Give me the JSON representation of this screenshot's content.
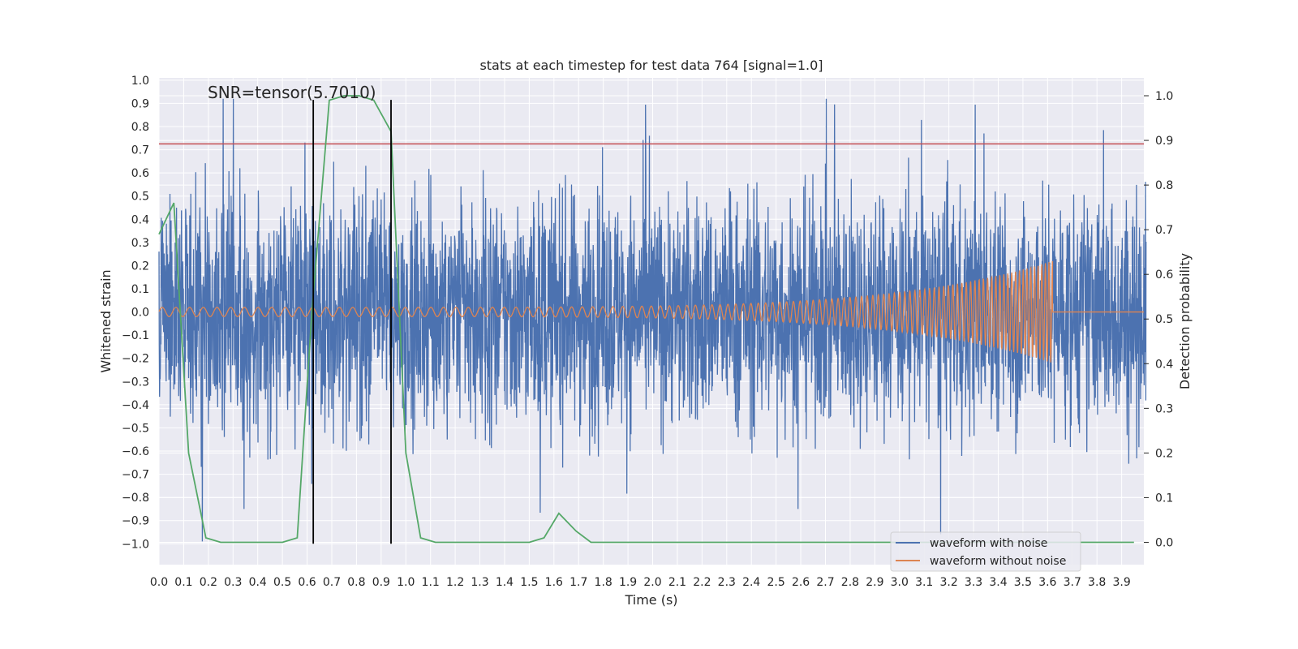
{
  "chart_data": {
    "type": "line",
    "title": "stats at each timestep for test data 764 [signal=1.0]",
    "xlabel": "Time (s)",
    "ylabel": "Whitened strain",
    "y2label": "Detection probability",
    "annotation": "SNR=tensor(5.7010)",
    "xlim": [
      0.0,
      3.99
    ],
    "ylim": [
      -1.09,
      1.01
    ],
    "y2lim": [
      -0.05,
      1.04
    ],
    "xticks": [
      "0.0",
      "0.1",
      "0.2",
      "0.3",
      "0.4",
      "0.5",
      "0.6",
      "0.7",
      "0.8",
      "0.9",
      "1.0",
      "1.1",
      "1.2",
      "1.3",
      "1.4",
      "1.5",
      "1.6",
      "1.7",
      "1.8",
      "1.9",
      "2.0",
      "2.1",
      "2.2",
      "2.3",
      "2.4",
      "2.5",
      "2.6",
      "2.7",
      "2.8",
      "2.9",
      "3.0",
      "3.1",
      "3.2",
      "3.3",
      "3.4",
      "3.5",
      "3.6",
      "3.7",
      "3.8",
      "3.9"
    ],
    "yticks": [
      "1.0",
      "0.9",
      "0.8",
      "0.7",
      "0.6",
      "0.5",
      "0.4",
      "0.3",
      "0.2",
      "0.1",
      "0.0",
      "−0.1",
      "−0.2",
      "−0.3",
      "−0.4",
      "−0.5",
      "−0.6",
      "−0.7",
      "−0.8",
      "−0.9",
      "−1.0"
    ],
    "y2ticks": [
      "1.0",
      "0.9",
      "0.8",
      "0.7",
      "0.6",
      "0.5",
      "0.4",
      "0.3",
      "0.2",
      "0.1",
      "0.0"
    ],
    "threshold_y": 0.725,
    "vlines_x": [
      0.625,
      0.94
    ],
    "vline_y_range": [
      -1.0,
      0.915
    ],
    "legend_position": "lower-right",
    "colors": {
      "noise": "#4c72b0",
      "clean": "#dd8452",
      "prob": "#55a868",
      "threshold": "#c44e52",
      "vline": "#000000",
      "background": "#eaeaf2",
      "grid": "#ffffff"
    },
    "series": [
      {
        "name": "waveform with noise",
        "envelope_max": 0.92,
        "envelope_min": -0.99,
        "sample_rate": 2048,
        "duration": 4.0,
        "values_note_hidden": true
      },
      {
        "name": "waveform without noise",
        "chirp_start_amp": 0.02,
        "chirp_end_amp": 0.22,
        "chirp_end_time": 3.62,
        "start_freq_hz": 18,
        "end_freq_hz": 70
      },
      {
        "name": "",
        "axis": "right",
        "x": [
          0.0,
          0.06,
          0.12,
          0.19,
          0.25,
          0.31,
          0.37,
          0.44,
          0.5,
          0.56,
          0.62,
          0.69,
          0.75,
          0.81,
          0.87,
          0.94,
          1.0,
          1.06,
          1.12,
          1.19,
          1.25,
          1.31,
          1.37,
          1.44,
          1.5,
          1.56,
          1.62,
          1.69,
          1.75,
          1.81,
          1.87,
          1.94,
          2.0,
          2.5,
          3.0,
          3.5,
          3.95
        ],
        "y": [
          0.69,
          0.76,
          0.2,
          0.01,
          0.0,
          0.0,
          0.0,
          0.0,
          0.0,
          0.01,
          0.52,
          0.99,
          1.0,
          1.0,
          0.99,
          0.92,
          0.2,
          0.01,
          0.0,
          0.0,
          0.0,
          0.0,
          0.0,
          0.0,
          0.0,
          0.01,
          0.065,
          0.025,
          0.0,
          0.0,
          0.0,
          0.0,
          0.0,
          0.0,
          0.0,
          0.0,
          0.0
        ]
      }
    ]
  }
}
